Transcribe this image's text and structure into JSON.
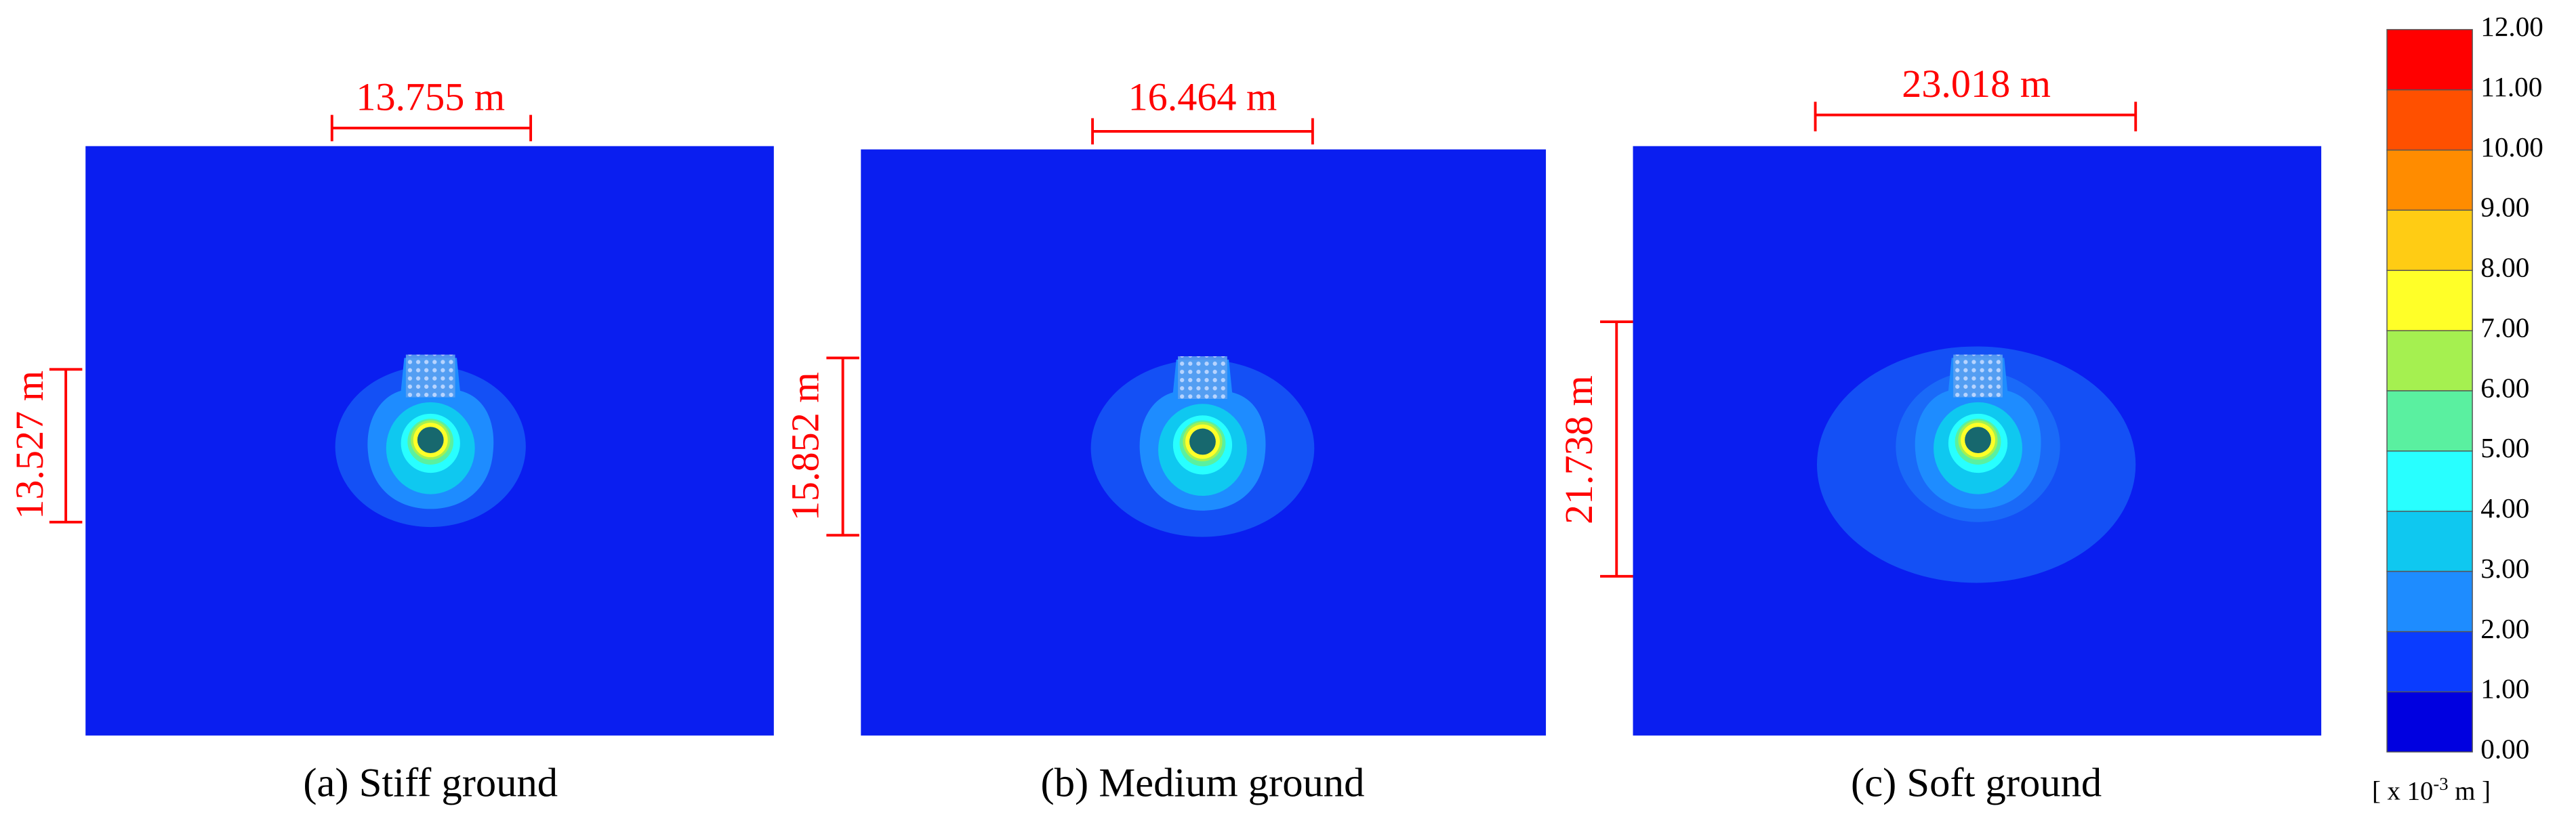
{
  "panels": [
    {
      "caption": "(a) Stiff ground",
      "width": "13.755 m",
      "height": "13.527 m"
    },
    {
      "caption": "(b) Medium ground",
      "width": "16.464 m",
      "height": "15.852 m"
    },
    {
      "caption": "(c) Soft ground",
      "width": "23.018 m",
      "height": "21.738 m"
    }
  ],
  "colorbar": {
    "ticks": [
      "0.00",
      "1.00",
      "2.00",
      "3.00",
      "4.00",
      "5.00",
      "6.00",
      "7.00",
      "8.00",
      "9.00",
      "10.00",
      "11.00",
      "12.00"
    ],
    "unit": {
      "prefix": "[ x 10",
      "exponent": "-3",
      "suffix": " m ]"
    }
  }
}
